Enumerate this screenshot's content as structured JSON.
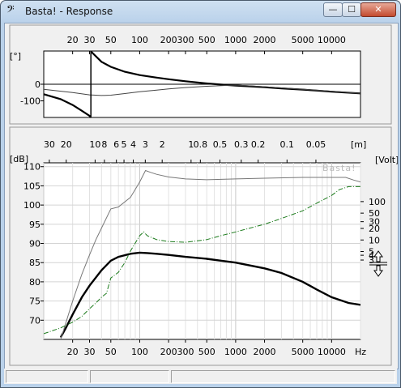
{
  "window": {
    "title": "Basta! - Response",
    "app_icon": "bass-clef-icon",
    "controls": {
      "minimize": "—",
      "maximize": "☐",
      "close": "✕"
    }
  },
  "phase_plot": {
    "unit": "[°]",
    "freq_ticks": [
      "20",
      "30",
      "50",
      "100",
      "200",
      "300",
      "500",
      "1000",
      "2000",
      "5000",
      "10000"
    ],
    "y_ticks": [
      "0",
      "-100"
    ]
  },
  "response_plot": {
    "left_unit": "[dB]",
    "right_unit": "[Volt]",
    "top_unit": "[m]",
    "watermark": "Basta!",
    "wavelength_ticks": [
      "30",
      "20",
      "10",
      "8",
      "6",
      "5",
      "4",
      "3",
      "2",
      "1",
      "0.8",
      "0.5",
      "0.3",
      "0.2",
      "0.1",
      "0.05"
    ],
    "db_ticks": [
      "110",
      "105",
      "100",
      "95",
      "90",
      "85",
      "80",
      "75",
      "70"
    ],
    "volt_ticks": [
      "100",
      "50",
      "30",
      "20",
      "10",
      "5",
      "4",
      "3"
    ],
    "freq_ticks": [
      "20",
      "30",
      "50",
      "100",
      "200",
      "300",
      "500",
      "1000",
      "2000",
      "5000",
      "10000",
      "Hz"
    ]
  },
  "chart_data": [
    {
      "type": "line",
      "ylabel": "[°]",
      "x_scale": "log",
      "xlim": [
        10,
        20000
      ],
      "ylim": [
        -200,
        200
      ],
      "grid": false,
      "series": [
        {
          "x": [
            10,
            15,
            20,
            25,
            30,
            31
          ],
          "y": [
            -60,
            -90,
            -125,
            -160,
            -190,
            -200
          ]
        },
        {
          "x": [
            31,
            32,
            40,
            50,
            70,
            100,
            150,
            200,
            300,
            500,
            700,
            1000,
            2000,
            3000,
            5000,
            7000,
            10000,
            20000
          ],
          "y": [
            200,
            190,
            135,
            105,
            75,
            55,
            40,
            30,
            18,
            5,
            -2,
            -8,
            -18,
            -25,
            -32,
            -38,
            -45,
            -55
          ]
        },
        {
          "x": [
            10,
            20,
            30,
            40,
            50,
            70,
            100,
            150,
            200,
            300,
            500,
            1000,
            2000,
            3000,
            5000,
            10000,
            20000
          ],
          "y": [
            -30,
            -50,
            -64,
            -68,
            -66,
            -56,
            -45,
            -35,
            -28,
            -20,
            -12,
            -5,
            -15,
            -22,
            -30,
            -42,
            -55
          ]
        }
      ]
    },
    {
      "type": "line",
      "ylabel": "[dB]",
      "x_scale": "log",
      "xlim": [
        10,
        20000
      ],
      "ylim": [
        65,
        111
      ],
      "grid": true,
      "series": [
        {
          "x": [
            15,
            17,
            20,
            25,
            30,
            40,
            50,
            60,
            80,
            100,
            120,
            150,
            200,
            300,
            500,
            700,
            1000,
            2000,
            3000,
            5000,
            7000,
            10000,
            15000,
            20000
          ],
          "y": [
            65.5,
            68,
            71.5,
            76,
            79,
            83,
            85.5,
            86.5,
            87.3,
            87.6,
            87.5,
            87.3,
            87,
            86.5,
            86,
            85.5,
            85,
            83.5,
            82.3,
            80,
            78,
            76,
            74.5,
            74
          ]
        },
        {
          "x": [
            15,
            20,
            25,
            30,
            35,
            40,
            50,
            60,
            80,
            100,
            115,
            130,
            150,
            200,
            300,
            500,
            1000,
            2000,
            5000,
            10000,
            14000,
            17000,
            20000
          ],
          "y": [
            65,
            75,
            82,
            87,
            91,
            94,
            99,
            99.5,
            102,
            106,
            109,
            108.5,
            108,
            107.3,
            106.8,
            106.6,
            106.8,
            107,
            107.2,
            107.2,
            107.2,
            106.5,
            106
          ]
        },
        {
          "x": [
            10,
            15,
            20,
            25,
            30,
            35,
            40,
            45,
            50,
            60,
            70,
            80,
            100,
            110,
            120,
            150,
            200,
            300,
            500,
            700,
            1000,
            2000,
            3000,
            5000,
            7000,
            10000,
            12000,
            15000,
            20000
          ],
          "y": [
            66.5,
            68,
            69.5,
            71,
            73,
            74.5,
            76,
            77,
            81,
            82.5,
            85,
            88,
            92,
            93,
            92,
            91,
            90.5,
            90.3,
            91,
            92,
            93,
            95,
            96.5,
            98.5,
            100.5,
            102.5,
            104,
            104.8,
            104.8
          ]
        }
      ]
    }
  ]
}
